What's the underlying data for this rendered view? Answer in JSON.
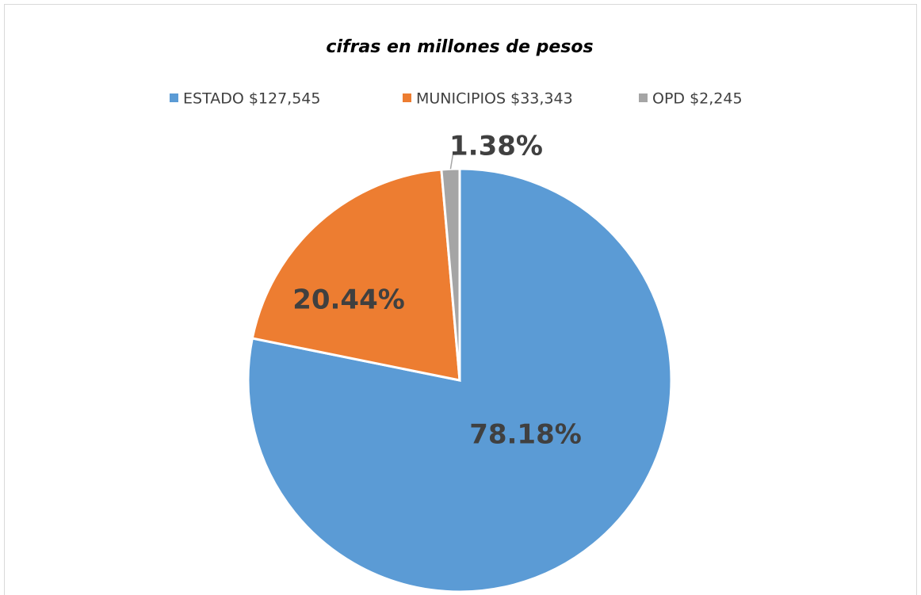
{
  "chart_data": {
    "type": "pie",
    "title": "cifras en millones de pesos",
    "categories": [
      "ESTADO $127,545",
      "MUNICIPIOS $33,343",
      "OPD $2,245"
    ],
    "values": [
      78.18,
      20.44,
      1.38
    ],
    "value_labels": [
      "78.18%",
      "20.44%",
      "1.38%"
    ],
    "colors": [
      "#5b9bd5",
      "#ed7d31",
      "#a5a5a5"
    ],
    "legend": "top"
  }
}
